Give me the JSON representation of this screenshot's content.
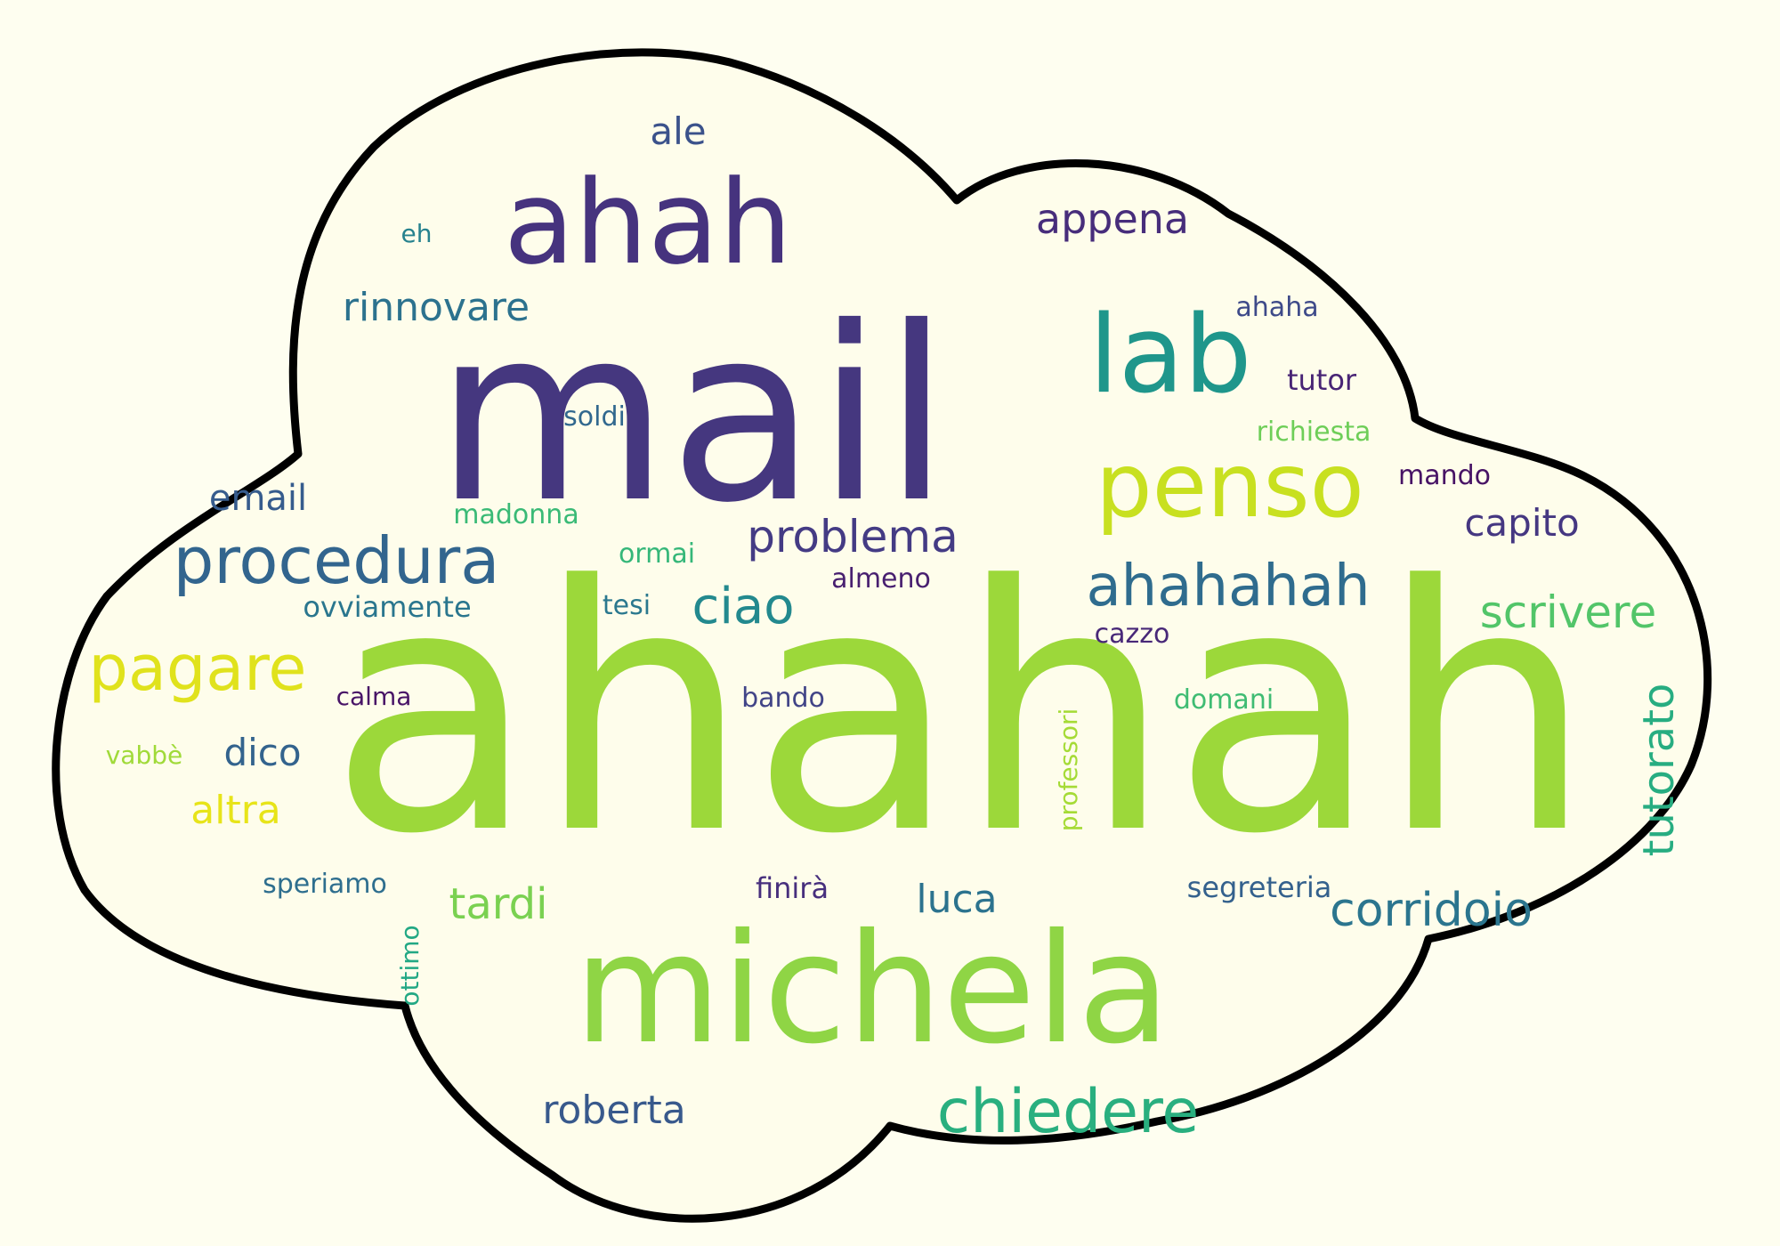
{
  "page": {
    "background": "#fefef0",
    "shape": "cloud",
    "outline_color": "#000000",
    "cloud_fill": "#fefdeb"
  },
  "words": [
    {
      "text": "ahahah",
      "color": "#9cd83a",
      "vertical": false
    },
    {
      "text": "mail",
      "color": "#45377f",
      "vertical": false
    },
    {
      "text": "michela",
      "color": "#8fd545",
      "vertical": false
    },
    {
      "text": "ahah",
      "color": "#46337e",
      "vertical": false
    },
    {
      "text": "lab",
      "color": "#1f968b",
      "vertical": false
    },
    {
      "text": "penso",
      "color": "#c8e020",
      "vertical": false
    },
    {
      "text": "procedura",
      "color": "#32658e",
      "vertical": false
    },
    {
      "text": "ahahahah",
      "color": "#2f6c8e",
      "vertical": false
    },
    {
      "text": "chiedere",
      "color": "#29af7f",
      "vertical": false
    },
    {
      "text": "pagare",
      "color": "#e0e21c",
      "vertical": false
    },
    {
      "text": "ciao",
      "color": "#23898e",
      "vertical": false
    },
    {
      "text": "problema",
      "color": "#443b84",
      "vertical": false
    },
    {
      "text": "corridoio",
      "color": "#2b758e",
      "vertical": false
    },
    {
      "text": "scrivere",
      "color": "#52c569",
      "vertical": false
    },
    {
      "text": "tutorato",
      "color": "#27ad81",
      "vertical": true
    },
    {
      "text": "appena",
      "color": "#472d7b",
      "vertical": false
    },
    {
      "text": "rinnovare",
      "color": "#2c728e",
      "vertical": false
    },
    {
      "text": "capito",
      "color": "#453781",
      "vertical": false
    },
    {
      "text": "roberta",
      "color": "#38598c",
      "vertical": false
    },
    {
      "text": "email",
      "color": "#365c8d",
      "vertical": false
    },
    {
      "text": "tardi",
      "color": "#7ad151",
      "vertical": false
    },
    {
      "text": "luca",
      "color": "#2c738e",
      "vertical": false
    },
    {
      "text": "altra",
      "color": "#e7e419",
      "vertical": false
    },
    {
      "text": "dico",
      "color": "#33638d",
      "vertical": false
    },
    {
      "text": "ale",
      "color": "#3b528b",
      "vertical": false
    },
    {
      "text": "eh",
      "color": "#26828e",
      "vertical": false
    },
    {
      "text": "ahaha",
      "color": "#3e4a89",
      "vertical": false
    },
    {
      "text": "tutor",
      "color": "#482475",
      "vertical": false
    },
    {
      "text": "soldi",
      "color": "#31688e",
      "vertical": false
    },
    {
      "text": "richiesta",
      "color": "#6ece58",
      "vertical": false
    },
    {
      "text": "mando",
      "color": "#471365",
      "vertical": false
    },
    {
      "text": "madonna",
      "color": "#3aba76",
      "vertical": false
    },
    {
      "text": "ormai",
      "color": "#35b779",
      "vertical": false
    },
    {
      "text": "almeno",
      "color": "#481f70",
      "vertical": false
    },
    {
      "text": "tesi",
      "color": "#2a788e",
      "vertical": false
    },
    {
      "text": "ovviamente",
      "color": "#2a768e",
      "vertical": false
    },
    {
      "text": "cazzo",
      "color": "#482878",
      "vertical": false
    },
    {
      "text": "calma",
      "color": "#481467",
      "vertical": false
    },
    {
      "text": "bando",
      "color": "#414487",
      "vertical": false
    },
    {
      "text": "domani",
      "color": "#3fbc73",
      "vertical": false
    },
    {
      "text": "vabbè",
      "color": "#a0da39",
      "vertical": false
    },
    {
      "text": "professori",
      "color": "#a5db36",
      "vertical": true
    },
    {
      "text": "speriamo",
      "color": "#2e6e8e",
      "vertical": false
    },
    {
      "text": "finirà",
      "color": "#472f7d",
      "vertical": false
    },
    {
      "text": "segreteria",
      "color": "#34618d",
      "vertical": false
    },
    {
      "text": "ottimo",
      "color": "#22a884",
      "vertical": true
    }
  ]
}
